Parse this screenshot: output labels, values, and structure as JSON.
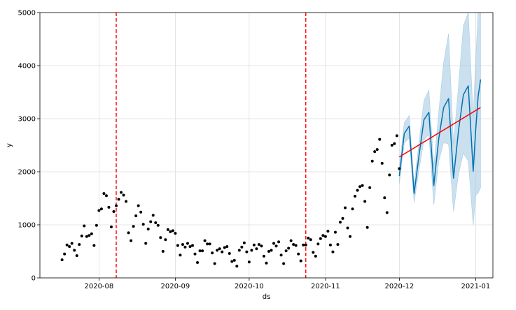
{
  "chart_data": {
    "type": "line",
    "title": "",
    "xlabel": "ds",
    "ylabel": "y",
    "x_range": [
      "2020-07-08",
      "2021-01-08"
    ],
    "ylim": [
      0,
      5000
    ],
    "grid": true,
    "x_ticks": [
      {
        "date": "2020-08-01",
        "label": "2020-08"
      },
      {
        "date": "2020-09-01",
        "label": "2020-09"
      },
      {
        "date": "2020-10-01",
        "label": "2020-10"
      },
      {
        "date": "2020-11-01",
        "label": "2020-11"
      },
      {
        "date": "2020-12-01",
        "label": "2020-12"
      },
      {
        "date": "2021-01-01",
        "label": "2021-01"
      }
    ],
    "y_ticks": [
      0,
      1000,
      2000,
      3000,
      4000,
      5000
    ],
    "changepoints": [
      "2020-08-08",
      "2020-10-24"
    ],
    "colors": {
      "observed": "#000000",
      "forecast": "#0072B2",
      "interval": "#A9CCE3",
      "trend": "#FF0000",
      "changepoint": "#FF0000",
      "grid": "#DDDDDD"
    },
    "series": [
      {
        "kind": "observed",
        "points": [
          [
            "2020-07-17",
            340
          ],
          [
            "2020-07-18",
            450
          ],
          [
            "2020-07-19",
            620
          ],
          [
            "2020-07-20",
            590
          ],
          [
            "2020-07-21",
            650
          ],
          [
            "2020-07-22",
            520
          ],
          [
            "2020-07-23",
            420
          ],
          [
            "2020-07-24",
            630
          ],
          [
            "2020-07-25",
            790
          ],
          [
            "2020-07-26",
            980
          ],
          [
            "2020-07-27",
            780
          ],
          [
            "2020-07-28",
            800
          ],
          [
            "2020-07-29",
            830
          ],
          [
            "2020-07-30",
            610
          ],
          [
            "2020-07-31",
            990
          ],
          [
            "2020-08-01",
            1270
          ],
          [
            "2020-08-02",
            1300
          ],
          [
            "2020-08-03",
            1590
          ],
          [
            "2020-08-04",
            1550
          ],
          [
            "2020-08-05",
            1330
          ],
          [
            "2020-08-06",
            960
          ],
          [
            "2020-08-07",
            1250
          ],
          [
            "2020-08-08",
            1360
          ],
          [
            "2020-08-09",
            1480
          ],
          [
            "2020-08-10",
            1610
          ],
          [
            "2020-08-11",
            1560
          ],
          [
            "2020-08-12",
            1440
          ],
          [
            "2020-08-13",
            850
          ],
          [
            "2020-08-14",
            700
          ],
          [
            "2020-08-15",
            970
          ],
          [
            "2020-08-16",
            1170
          ],
          [
            "2020-08-17",
            1360
          ],
          [
            "2020-08-18",
            1240
          ],
          [
            "2020-08-19",
            1010
          ],
          [
            "2020-08-20",
            650
          ],
          [
            "2020-08-21",
            920
          ],
          [
            "2020-08-22",
            1060
          ],
          [
            "2020-08-23",
            1180
          ],
          [
            "2020-08-24",
            1040
          ],
          [
            "2020-08-25",
            990
          ],
          [
            "2020-08-26",
            760
          ],
          [
            "2020-08-27",
            500
          ],
          [
            "2020-08-28",
            720
          ],
          [
            "2020-08-29",
            910
          ],
          [
            "2020-08-30",
            870
          ],
          [
            "2020-08-31",
            890
          ],
          [
            "2020-09-01",
            840
          ],
          [
            "2020-09-02",
            610
          ],
          [
            "2020-09-03",
            430
          ],
          [
            "2020-09-04",
            630
          ],
          [
            "2020-09-05",
            580
          ],
          [
            "2020-09-06",
            650
          ],
          [
            "2020-09-07",
            590
          ],
          [
            "2020-09-08",
            610
          ],
          [
            "2020-09-09",
            450
          ],
          [
            "2020-09-10",
            290
          ],
          [
            "2020-09-11",
            510
          ],
          [
            "2020-09-12",
            510
          ],
          [
            "2020-09-13",
            700
          ],
          [
            "2020-09-14",
            640
          ],
          [
            "2020-09-15",
            640
          ],
          [
            "2020-09-16",
            470
          ],
          [
            "2020-09-17",
            270
          ],
          [
            "2020-09-18",
            520
          ],
          [
            "2020-09-19",
            550
          ],
          [
            "2020-09-20",
            490
          ],
          [
            "2020-09-21",
            570
          ],
          [
            "2020-09-22",
            590
          ],
          [
            "2020-09-23",
            460
          ],
          [
            "2020-09-24",
            310
          ],
          [
            "2020-09-25",
            330
          ],
          [
            "2020-09-26",
            220
          ],
          [
            "2020-09-27",
            520
          ],
          [
            "2020-09-28",
            580
          ],
          [
            "2020-09-29",
            660
          ],
          [
            "2020-09-30",
            490
          ],
          [
            "2020-10-01",
            300
          ],
          [
            "2020-10-02",
            520
          ],
          [
            "2020-10-03",
            620
          ],
          [
            "2020-10-04",
            550
          ],
          [
            "2020-10-05",
            630
          ],
          [
            "2020-10-06",
            600
          ],
          [
            "2020-10-07",
            410
          ],
          [
            "2020-10-08",
            280
          ],
          [
            "2020-10-09",
            500
          ],
          [
            "2020-10-10",
            520
          ],
          [
            "2020-10-11",
            650
          ],
          [
            "2020-10-12",
            600
          ],
          [
            "2020-10-13",
            680
          ],
          [
            "2020-10-14",
            430
          ],
          [
            "2020-10-15",
            270
          ],
          [
            "2020-10-16",
            510
          ],
          [
            "2020-10-17",
            560
          ],
          [
            "2020-10-18",
            700
          ],
          [
            "2020-10-19",
            630
          ],
          [
            "2020-10-20",
            610
          ],
          [
            "2020-10-21",
            450
          ],
          [
            "2020-10-22",
            320
          ],
          [
            "2020-10-23",
            620
          ],
          [
            "2020-10-24",
            620
          ],
          [
            "2020-10-25",
            750
          ],
          [
            "2020-10-26",
            720
          ],
          [
            "2020-10-27",
            480
          ],
          [
            "2020-10-28",
            410
          ],
          [
            "2020-10-29",
            640
          ],
          [
            "2020-10-30",
            740
          ],
          [
            "2020-10-31",
            800
          ],
          [
            "2020-11-01",
            780
          ],
          [
            "2020-11-02",
            880
          ],
          [
            "2020-11-03",
            620
          ],
          [
            "2020-11-04",
            490
          ],
          [
            "2020-11-05",
            860
          ],
          [
            "2020-11-06",
            630
          ],
          [
            "2020-11-07",
            1050
          ],
          [
            "2020-11-08",
            1120
          ],
          [
            "2020-11-09",
            1320
          ],
          [
            "2020-11-10",
            940
          ],
          [
            "2020-11-11",
            780
          ],
          [
            "2020-11-12",
            1300
          ],
          [
            "2020-11-13",
            1540
          ],
          [
            "2020-11-14",
            1650
          ],
          [
            "2020-11-15",
            1720
          ],
          [
            "2020-11-16",
            1740
          ],
          [
            "2020-11-17",
            1440
          ],
          [
            "2020-11-18",
            950
          ],
          [
            "2020-11-19",
            1700
          ],
          [
            "2020-11-20",
            2200
          ],
          [
            "2020-11-21",
            2380
          ],
          [
            "2020-11-22",
            2420
          ],
          [
            "2020-11-23",
            2610
          ],
          [
            "2020-11-24",
            2160
          ],
          [
            "2020-11-25",
            1510
          ],
          [
            "2020-11-26",
            1230
          ],
          [
            "2020-11-27",
            1940
          ],
          [
            "2020-11-28",
            2500
          ],
          [
            "2020-11-29",
            2530
          ],
          [
            "2020-11-30",
            2680
          ],
          [
            "2020-12-01",
            2060
          ]
        ]
      },
      {
        "kind": "forecast",
        "points": [
          [
            "2020-12-01",
            1920
          ],
          [
            "2020-12-03",
            2720
          ],
          [
            "2020-12-05",
            2860
          ],
          [
            "2020-12-07",
            1590
          ],
          [
            "2020-12-09",
            2310
          ],
          [
            "2020-12-11",
            2980
          ],
          [
            "2020-12-13",
            3120
          ],
          [
            "2020-12-15",
            1740
          ],
          [
            "2020-12-17",
            2620
          ],
          [
            "2020-12-19",
            3210
          ],
          [
            "2020-12-21",
            3380
          ],
          [
            "2020-12-23",
            1880
          ],
          [
            "2020-12-25",
            2760
          ],
          [
            "2020-12-27",
            3450
          ],
          [
            "2020-12-29",
            3620
          ],
          [
            "2020-12-31",
            2010
          ],
          [
            "2021-01-01",
            2780
          ],
          [
            "2021-01-02",
            3420
          ],
          [
            "2021-01-03",
            3740
          ]
        ]
      },
      {
        "kind": "interval",
        "points": [
          [
            "2020-12-01",
            1780,
            2070
          ],
          [
            "2020-12-03",
            2540,
            2920
          ],
          [
            "2020-12-05",
            2640,
            3060
          ],
          [
            "2020-12-07",
            1420,
            1760
          ],
          [
            "2020-12-09",
            2040,
            2560
          ],
          [
            "2020-12-11",
            2600,
            3340
          ],
          [
            "2020-12-13",
            2700,
            3540
          ],
          [
            "2020-12-15",
            1380,
            2100
          ],
          [
            "2020-12-17",
            2200,
            3120
          ],
          [
            "2020-12-19",
            2550,
            4060
          ],
          [
            "2020-12-21",
            2520,
            4600
          ],
          [
            "2020-12-23",
            1250,
            2520
          ],
          [
            "2020-12-25",
            1950,
            3600
          ],
          [
            "2020-12-27",
            2350,
            4750
          ],
          [
            "2020-12-29",
            2200,
            5000
          ],
          [
            "2020-12-31",
            1000,
            3020
          ],
          [
            "2021-01-01",
            1550,
            4100
          ],
          [
            "2021-01-02",
            1600,
            5000
          ],
          [
            "2021-01-03",
            1700,
            5000
          ]
        ]
      },
      {
        "kind": "trend",
        "points": [
          [
            "2020-12-01",
            2280
          ],
          [
            "2021-01-03",
            3210
          ]
        ]
      }
    ]
  }
}
